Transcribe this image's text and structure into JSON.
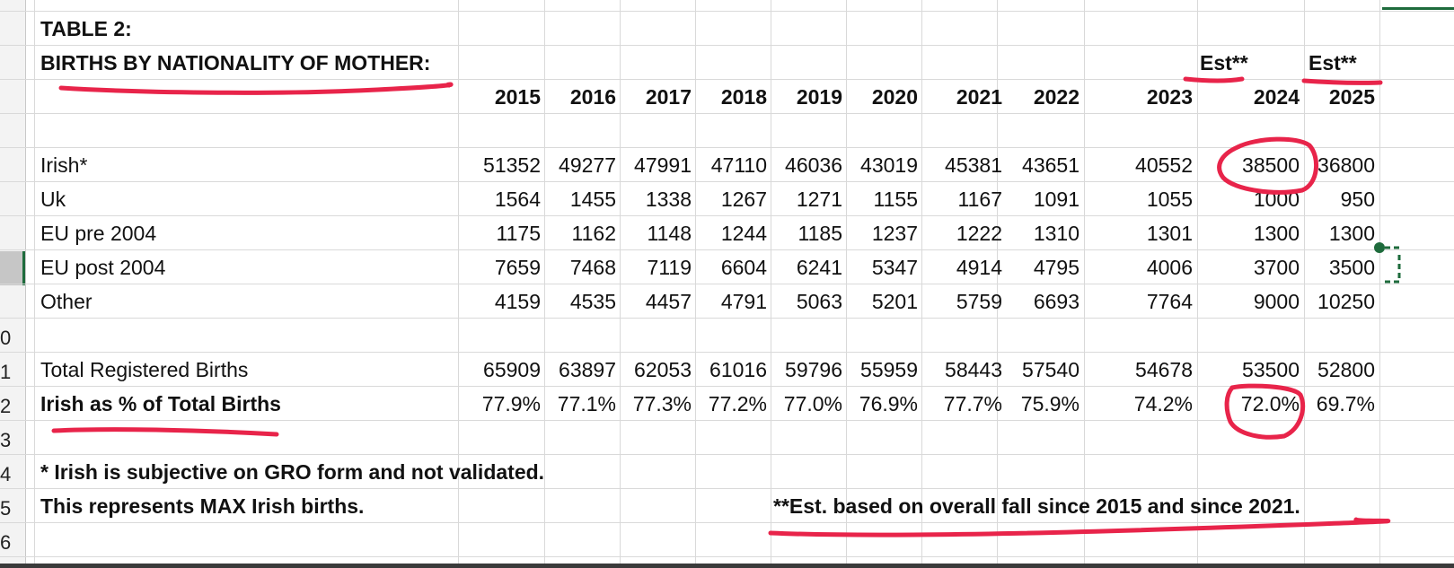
{
  "table": {
    "title": "TABLE 2:",
    "subtitle": "BIRTHS BY NATIONALITY OF MOTHER:",
    "est_labels": [
      "Est**",
      "Est**"
    ],
    "years": [
      "2015",
      "2016",
      "2017",
      "2018",
      "2019",
      "2020",
      "2021",
      "2022",
      "2023",
      "2024",
      "2025"
    ],
    "rows": [
      {
        "label": "Irish*",
        "values": [
          "51352",
          "49277",
          "47991",
          "47110",
          "46036",
          "43019",
          "45381",
          "43651",
          "40552",
          "38500",
          "36800"
        ]
      },
      {
        "label": "Uk",
        "values": [
          "1564",
          "1455",
          "1338",
          "1267",
          "1271",
          "1155",
          "1167",
          "1091",
          "1055",
          "1000",
          "950"
        ]
      },
      {
        "label": "EU pre 2004",
        "values": [
          "1175",
          "1162",
          "1148",
          "1244",
          "1185",
          "1237",
          "1222",
          "1310",
          "1301",
          "1300",
          "1300"
        ]
      },
      {
        "label": "EU post 2004",
        "values": [
          "7659",
          "7468",
          "7119",
          "6604",
          "6241",
          "5347",
          "4914",
          "4795",
          "4006",
          "3700",
          "3500"
        ]
      },
      {
        "label": "Other",
        "values": [
          "4159",
          "4535",
          "4457",
          "4791",
          "5063",
          "5201",
          "5759",
          "6693",
          "7764",
          "9000",
          "10250"
        ]
      }
    ],
    "total": {
      "label": "Total Registered Births",
      "values": [
        "65909",
        "63897",
        "62053",
        "61016",
        "59796",
        "55959",
        "58443",
        "57540",
        "54678",
        "53500",
        "52800"
      ]
    },
    "pct": {
      "label": "Irish as % of Total Births",
      "values": [
        "77.9%",
        "77.1%",
        "77.3%",
        "77.2%",
        "77.0%",
        "76.9%",
        "77.7%",
        "75.9%",
        "74.2%",
        "72.0%",
        "69.7%"
      ]
    },
    "note1": "* Irish is subjective on GRO form and not validated.",
    "note2": "This represents MAX Irish births.",
    "note3": "**Est. based on overall fall since 2015 and since 2021."
  },
  "row_numbers": [
    "0",
    "1",
    "2",
    "3",
    "4",
    "5",
    "6"
  ],
  "colors": {
    "ink": "#e8244a",
    "grid": "#d9d9d9",
    "selection": "#1e6b3c"
  }
}
